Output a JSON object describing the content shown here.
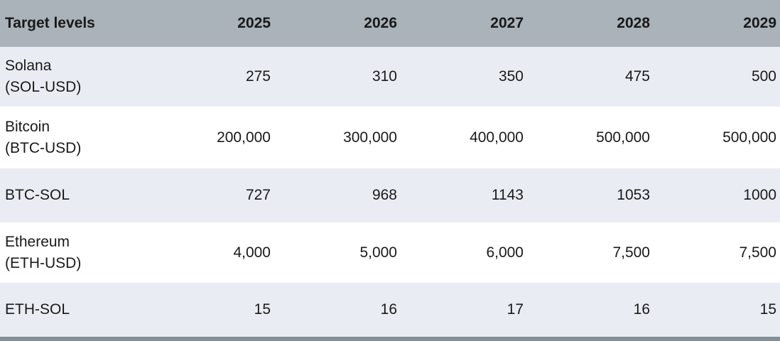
{
  "colors": {
    "header_bg": "#aab2ba",
    "row_light_bg": "#e9edf3",
    "row_white_bg": "#ffffff",
    "bottom_bar": "#868e96",
    "text": "#191919"
  },
  "table": {
    "header": [
      "Target levels",
      "2025",
      "2026",
      "2027",
      "2028",
      "2029"
    ],
    "rows": [
      {
        "label_line1": "Solana",
        "label_line2": "(SOL-USD)",
        "values": [
          "275",
          "310",
          "350",
          "475",
          "500"
        ]
      },
      {
        "label_line1": "Bitcoin",
        "label_line2": "(BTC-USD)",
        "values": [
          "200,000",
          "300,000",
          "400,000",
          "500,000",
          "500,000"
        ]
      },
      {
        "label_line1": "BTC-SOL",
        "values": [
          "727",
          "968",
          "1143",
          "1053",
          "1000"
        ]
      },
      {
        "label_line1": "Ethereum",
        "label_line2": "(ETH-USD)",
        "values": [
          "4,000",
          "5,000",
          "6,000",
          "7,500",
          "7,500"
        ]
      },
      {
        "label_line1": "ETH-SOL",
        "values": [
          "15",
          "16",
          "17",
          "16",
          "15"
        ]
      }
    ]
  },
  "chart_data": {
    "type": "table",
    "title": "Target levels",
    "columns": [
      "Target levels",
      "2025",
      "2026",
      "2027",
      "2028",
      "2029"
    ],
    "rows": [
      [
        "Solana (SOL-USD)",
        275,
        310,
        350,
        475,
        500
      ],
      [
        "Bitcoin (BTC-USD)",
        200000,
        300000,
        400000,
        500000,
        500000
      ],
      [
        "BTC-SOL",
        727,
        968,
        1143,
        1053,
        1000
      ],
      [
        "Ethereum (ETH-USD)",
        4000,
        5000,
        6000,
        7500,
        7500
      ],
      [
        "ETH-SOL",
        15,
        16,
        17,
        16,
        15
      ]
    ]
  }
}
